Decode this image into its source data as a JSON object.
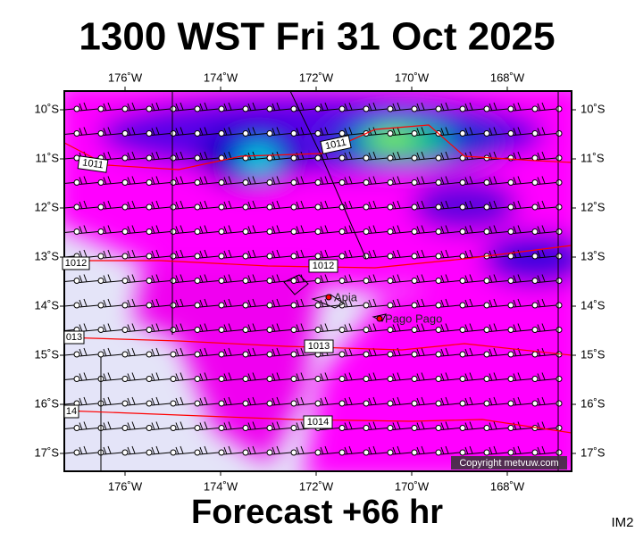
{
  "header": {
    "title": "1300 WST Fri 31 Oct 2025",
    "footer": "Forecast +66 hr",
    "image_id": "IM2"
  },
  "map": {
    "lon_labels": [
      "176˚W",
      "174˚W",
      "172˚W",
      "170˚W",
      "168˚W"
    ],
    "lat_labels": [
      "10˚S",
      "11˚S",
      "12˚S",
      "13˚S",
      "14˚S",
      "15˚S",
      "16˚S",
      "17˚S"
    ],
    "isobars": [
      {
        "label": "1011",
        "label_left": "1011"
      },
      {
        "label": "1012",
        "label_left": "1012"
      },
      {
        "label": "1013",
        "label_left": "013"
      },
      {
        "label": "1014",
        "label_left": "14"
      }
    ],
    "places": [
      "Apia",
      "Pago Pago"
    ],
    "copyright": "Copyright metvuw.com"
  }
}
